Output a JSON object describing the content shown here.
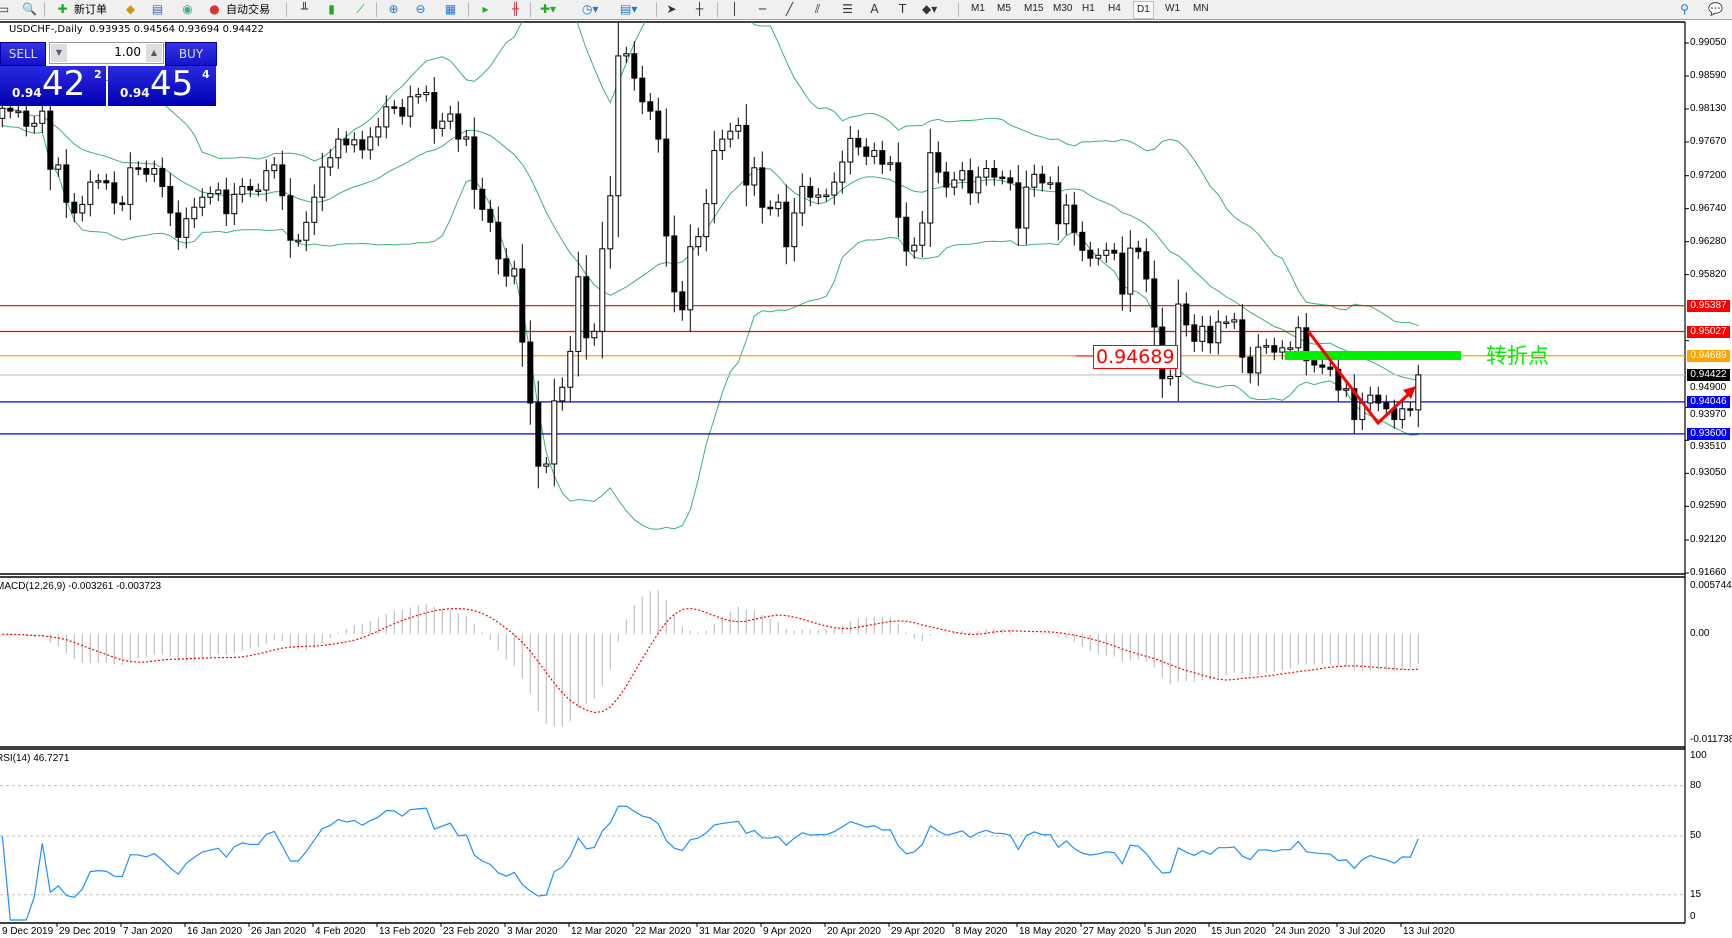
{
  "toolbar": {
    "new_order_label": "新订单",
    "autotrade_label": "自动交易",
    "icons": [
      "profile-icon",
      "zoom-doc-icon",
      "new-order-icon",
      "gold-icon",
      "market-watch-icon",
      "signal-icon",
      "autotrade-icon",
      "bar-chart-icon",
      "candle-chart-icon",
      "line-chart-icon",
      "zoom-in-icon",
      "zoom-out-icon",
      "tile-icon",
      "autoscroll-icon",
      "chart-shift-icon",
      "indicators-icon",
      "periods-icon",
      "templates-icon",
      "cursor-icon",
      "crosshair-icon",
      "vertical-line-icon",
      "horizontal-line-icon",
      "trendline-icon",
      "channel-icon",
      "fibo-icon",
      "text-icon",
      "label-icon",
      "shapes-icon",
      "search-icon",
      "chat-icon"
    ],
    "timeframes": [
      "M1",
      "M5",
      "M15",
      "M30",
      "H1",
      "H4",
      "D1",
      "W1",
      "MN"
    ],
    "selected_timeframe": "D1"
  },
  "chart_header": {
    "symbol": "USDCHF-,Daily",
    "ohlc": "0.93935 0.94564 0.93694 0.94422"
  },
  "trade_panel": {
    "sell_label": "SELL",
    "buy_label": "BUY",
    "lot": "1.00",
    "sell_price": {
      "small": "0.94",
      "big": "42",
      "pip": "2"
    },
    "buy_price": {
      "small": "0.94",
      "big": "45",
      "pip": "4"
    },
    "color": "#1a1ad0"
  },
  "annotation": {
    "price_box": "0.94689",
    "turning_point_text": "转折点",
    "green_bar_color": "#00ee00",
    "arrow_color": "#ff0000"
  },
  "macd_label": "MACD(12,26,9) -0.003261 -0.003723",
  "rsi_label": "RSI(14) 46.7271",
  "chart_data": [
    {
      "type": "candlestick",
      "title": "USDCHF-,Daily",
      "ylim": [
        0.9166,
        0.9905
      ],
      "y_ticks": [
        "0.99050",
        "0.98590",
        "0.98130",
        "0.97670",
        "0.97200",
        "0.96740",
        "0.96280",
        "0.95820",
        "0.94900",
        "0.93970",
        "0.93510",
        "0.93050",
        "0.92590",
        "0.92120",
        "0.91660"
      ],
      "x_tick_labels": [
        "9 Dec 2019",
        "29 Dec 2019",
        "7 Jan 2020",
        "16 Jan 2020",
        "26 Jan 2020",
        "4 Feb 2020",
        "13 Feb 2020",
        "23 Feb 2020",
        "3 Mar 2020",
        "12 Mar 2020",
        "22 Mar 2020",
        "31 Mar 2020",
        "9 Apr 2020",
        "20 Apr 2020",
        "29 Apr 2020",
        "8 May 2020",
        "18 May 2020",
        "27 May 2020",
        "5 Jun 2020",
        "15 Jun 2020",
        "24 Jun 2020",
        "3 Jul 2020",
        "13 Jul 2020"
      ],
      "first_open": 0.98,
      "last_bar": {
        "open": 0.93935,
        "high": 0.94564,
        "low": 0.93694,
        "close": 0.94422
      },
      "close": [
        0.9814,
        0.981,
        0.981,
        0.9789,
        0.9793,
        0.981,
        0.9729,
        0.9735,
        0.9683,
        0.9668,
        0.968,
        0.9711,
        0.9713,
        0.971,
        0.9682,
        0.968,
        0.9731,
        0.973,
        0.9722,
        0.973,
        0.9705,
        0.9668,
        0.9634,
        0.966,
        0.9676,
        0.969,
        0.9695,
        0.97,
        0.9667,
        0.9694,
        0.9705,
        0.97,
        0.97,
        0.9727,
        0.9735,
        0.9692,
        0.963,
        0.963,
        0.9655,
        0.969,
        0.9732,
        0.9745,
        0.9771,
        0.9763,
        0.977,
        0.9756,
        0.9774,
        0.9788,
        0.9816,
        0.9815,
        0.9803,
        0.983,
        0.9833,
        0.9836,
        0.9786,
        0.9796,
        0.9806,
        0.9771,
        0.9774,
        0.9701,
        0.9673,
        0.9655,
        0.9604,
        0.958,
        0.959,
        0.9488,
        0.9403,
        0.9315,
        0.9318,
        0.9406,
        0.9425,
        0.9475,
        0.9579,
        0.9494,
        0.9503,
        0.9618,
        0.9692,
        0.9887,
        0.989,
        0.9856,
        0.9823,
        0.981,
        0.9771,
        0.9636,
        0.9558,
        0.9533,
        0.9621,
        0.9635,
        0.9681,
        0.9755,
        0.9771,
        0.9782,
        0.979,
        0.9707,
        0.9731,
        0.9676,
        0.9674,
        0.9683,
        0.9621,
        0.9668,
        0.9705,
        0.969,
        0.9693,
        0.9693,
        0.9711,
        0.9739,
        0.9772,
        0.976,
        0.9747,
        0.9755,
        0.9736,
        0.9738,
        0.9662,
        0.9615,
        0.9623,
        0.9654,
        0.9752,
        0.9725,
        0.9704,
        0.9714,
        0.9727,
        0.9696,
        0.9718,
        0.973,
        0.9718,
        0.9717,
        0.971,
        0.9647,
        0.9704,
        0.9722,
        0.971,
        0.971,
        0.9653,
        0.9679,
        0.9641,
        0.9616,
        0.9605,
        0.9609,
        0.9616,
        0.9612,
        0.9555,
        0.9619,
        0.9614,
        0.9576,
        0.9509,
        0.9437,
        0.944,
        0.9541,
        0.9512,
        0.9489,
        0.951,
        0.9487,
        0.9516,
        0.9516,
        0.9519,
        0.9467,
        0.9445,
        0.9481,
        0.9483,
        0.9474,
        0.948,
        0.948,
        0.9508,
        0.9462,
        0.9456,
        0.9453,
        0.945,
        0.9421,
        0.9423,
        0.938,
        0.9403,
        0.9414,
        0.9403,
        0.9395,
        0.938,
        0.9395,
        0.93935,
        0.94422
      ],
      "bollinger": {
        "period": 20,
        "deviations": 2,
        "color": "#3cb371"
      },
      "horizontal_lines": [
        {
          "price": "0.95387",
          "color": "#ff0000"
        },
        {
          "price": "0.95027",
          "color": "#ff0000"
        },
        {
          "price": "0.94689",
          "color": "#ffa500"
        },
        {
          "price": "0.94422",
          "color": "#000000",
          "line_color": "#c0c0c0"
        },
        {
          "price": "0.94046",
          "color": "#0000ff"
        },
        {
          "price": "0.93600",
          "color": "#0000ff"
        }
      ]
    },
    {
      "type": "bar+line",
      "indicator": "MACD(12,26,9)",
      "ylim": [
        -0.011738,
        0.005744
      ],
      "y_ticks": [
        "0.005744",
        "0.00",
        "-0.011738"
      ],
      "histogram_color": "#c0c0c0",
      "signal_color": "#ff0000"
    },
    {
      "type": "line",
      "indicator": "RSI(14)",
      "ylim": [
        0,
        100
      ],
      "y_ticks": [
        "100",
        "80",
        "50",
        "15",
        "0"
      ],
      "levels": [
        80,
        50,
        15
      ],
      "color": "#1e90ff"
    }
  ]
}
